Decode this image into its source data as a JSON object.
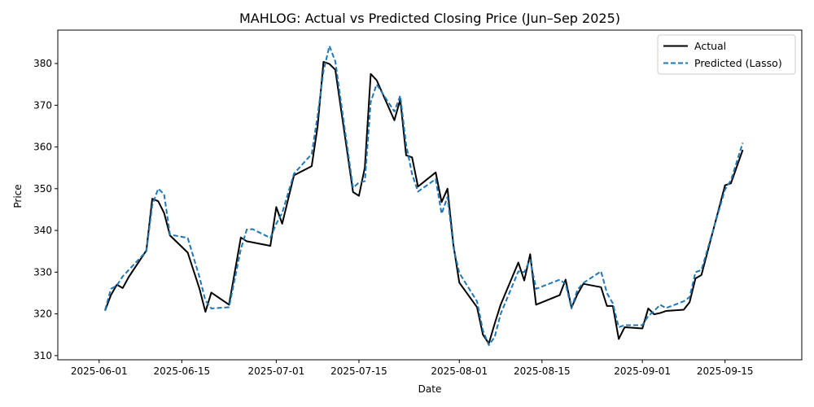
{
  "chart_data": {
    "type": "line",
    "title": "MAHLOG: Actual vs Predicted Closing Price (Jun–Sep 2025)",
    "xlabel": "Date",
    "ylabel": "Price",
    "ylim": [
      309,
      388
    ],
    "xlim": [
      "2025-05-25",
      "2025-09-28"
    ],
    "x_ticks": [
      "2025-06-01",
      "2025-06-15",
      "2025-07-01",
      "2025-07-15",
      "2025-08-01",
      "2025-08-15",
      "2025-09-01",
      "2025-09-15"
    ],
    "y_ticks": [
      310,
      320,
      330,
      340,
      350,
      360,
      370,
      380
    ],
    "grid": false,
    "legend_position": "top-right",
    "series": [
      {
        "name": "Actual",
        "color": "#000000",
        "style": "solid",
        "points": [
          [
            "2025-06-02",
            320.8
          ],
          [
            "2025-06-03",
            324.5
          ],
          [
            "2025-06-04",
            327.0
          ],
          [
            "2025-06-05",
            326.2
          ],
          [
            "2025-06-06",
            328.8
          ],
          [
            "2025-06-09",
            335.2
          ],
          [
            "2025-06-10",
            347.6
          ],
          [
            "2025-06-11",
            347.0
          ],
          [
            "2025-06-12",
            344.2
          ],
          [
            "2025-06-13",
            338.8
          ],
          [
            "2025-06-16",
            334.7
          ],
          [
            "2025-06-18",
            326.0
          ],
          [
            "2025-06-19",
            320.5
          ],
          [
            "2025-06-20",
            325.1
          ],
          [
            "2025-06-23",
            322.2
          ],
          [
            "2025-06-25",
            338.3
          ],
          [
            "2025-06-26",
            337.4
          ],
          [
            "2025-06-30",
            336.3
          ],
          [
            "2025-07-01",
            345.6
          ],
          [
            "2025-07-02",
            341.6
          ],
          [
            "2025-07-04",
            353.2
          ],
          [
            "2025-07-07",
            355.4
          ],
          [
            "2025-07-08",
            364.9
          ],
          [
            "2025-07-09",
            380.4
          ],
          [
            "2025-07-10",
            379.9
          ],
          [
            "2025-07-11",
            378.5
          ],
          [
            "2025-07-14",
            349.2
          ],
          [
            "2025-07-15",
            348.3
          ],
          [
            "2025-07-16",
            355.1
          ],
          [
            "2025-07-17",
            377.5
          ],
          [
            "2025-07-18",
            376.0
          ],
          [
            "2025-07-21",
            366.4
          ],
          [
            "2025-07-22",
            371.4
          ],
          [
            "2025-07-23",
            358.0
          ],
          [
            "2025-07-24",
            357.5
          ],
          [
            "2025-07-25",
            350.5
          ],
          [
            "2025-07-28",
            353.9
          ],
          [
            "2025-07-29",
            346.8
          ],
          [
            "2025-07-30",
            350.0
          ],
          [
            "2025-07-31",
            336.5
          ],
          [
            "2025-08-01",
            327.5
          ],
          [
            "2025-08-04",
            321.6
          ],
          [
            "2025-08-05",
            315.0
          ],
          [
            "2025-08-06",
            312.9
          ],
          [
            "2025-08-07",
            317.7
          ],
          [
            "2025-08-08",
            322.2
          ],
          [
            "2025-08-11",
            332.3
          ],
          [
            "2025-08-12",
            328.0
          ],
          [
            "2025-08-13",
            334.3
          ],
          [
            "2025-08-14",
            322.2
          ],
          [
            "2025-08-18",
            324.5
          ],
          [
            "2025-08-19",
            328.2
          ],
          [
            "2025-08-20",
            321.5
          ],
          [
            "2025-08-21",
            324.7
          ],
          [
            "2025-08-22",
            327.2
          ],
          [
            "2025-08-25",
            326.4
          ],
          [
            "2025-08-26",
            321.9
          ],
          [
            "2025-08-27",
            321.9
          ],
          [
            "2025-08-28",
            314.0
          ],
          [
            "2025-08-29",
            316.8
          ],
          [
            "2025-09-01",
            316.5
          ],
          [
            "2025-09-02",
            321.3
          ],
          [
            "2025-09-03",
            319.9
          ],
          [
            "2025-09-04",
            320.2
          ],
          [
            "2025-09-05",
            320.7
          ],
          [
            "2025-09-08",
            321.0
          ],
          [
            "2025-09-09",
            322.8
          ],
          [
            "2025-09-10",
            328.5
          ],
          [
            "2025-09-11",
            329.3
          ],
          [
            "2025-09-15",
            350.8
          ],
          [
            "2025-09-16",
            351.3
          ],
          [
            "2025-09-18",
            359.3
          ]
        ]
      },
      {
        "name": "Predicted (Lasso)",
        "color": "#1f77b4",
        "style": "dashed",
        "points": [
          [
            "2025-06-02",
            320.9
          ],
          [
            "2025-06-03",
            326.0
          ],
          [
            "2025-06-04",
            326.8
          ],
          [
            "2025-06-05",
            329.0
          ],
          [
            "2025-06-06",
            330.5
          ],
          [
            "2025-06-09",
            335.0
          ],
          [
            "2025-06-10",
            346.0
          ],
          [
            "2025-06-11",
            350.0
          ],
          [
            "2025-06-12",
            348.7
          ],
          [
            "2025-06-13",
            339.0
          ],
          [
            "2025-06-16",
            338.2
          ],
          [
            "2025-06-18",
            328.8
          ],
          [
            "2025-06-19",
            323.2
          ],
          [
            "2025-06-20",
            321.3
          ],
          [
            "2025-06-23",
            321.6
          ],
          [
            "2025-06-25",
            335.5
          ],
          [
            "2025-06-26",
            340.2
          ],
          [
            "2025-06-27",
            340.3
          ],
          [
            "2025-06-30",
            338.2
          ],
          [
            "2025-07-01",
            341.6
          ],
          [
            "2025-07-02",
            344.2
          ],
          [
            "2025-07-04",
            353.6
          ],
          [
            "2025-07-07",
            358.3
          ],
          [
            "2025-07-08",
            367.5
          ],
          [
            "2025-07-09",
            378.2
          ],
          [
            "2025-07-10",
            384.2
          ],
          [
            "2025-07-11",
            380.5
          ],
          [
            "2025-07-14",
            350.2
          ],
          [
            "2025-07-15",
            351.5
          ],
          [
            "2025-07-16",
            351.8
          ],
          [
            "2025-07-17",
            370.8
          ],
          [
            "2025-07-18",
            375.0
          ],
          [
            "2025-07-21",
            368.5
          ],
          [
            "2025-07-22",
            372.3
          ],
          [
            "2025-07-23",
            360.5
          ],
          [
            "2025-07-24",
            353.5
          ],
          [
            "2025-07-25",
            349.3
          ],
          [
            "2025-07-28",
            352.3
          ],
          [
            "2025-07-29",
            344.0
          ],
          [
            "2025-07-30",
            348.0
          ],
          [
            "2025-07-31",
            336.0
          ],
          [
            "2025-08-01",
            329.8
          ],
          [
            "2025-08-04",
            323.0
          ],
          [
            "2025-08-05",
            316.0
          ],
          [
            "2025-08-06",
            312.5
          ],
          [
            "2025-08-07",
            314.5
          ],
          [
            "2025-08-08",
            320.0
          ],
          [
            "2025-08-11",
            330.2
          ],
          [
            "2025-08-12",
            330.0
          ],
          [
            "2025-08-13",
            333.0
          ],
          [
            "2025-08-14",
            326.0
          ],
          [
            "2025-08-18",
            328.2
          ],
          [
            "2025-08-19",
            327.2
          ],
          [
            "2025-08-20",
            321.3
          ],
          [
            "2025-08-21",
            325.8
          ],
          [
            "2025-08-22",
            327.4
          ],
          [
            "2025-08-25",
            330.2
          ],
          [
            "2025-08-26",
            325.0
          ],
          [
            "2025-08-27",
            322.5
          ],
          [
            "2025-08-28",
            316.8
          ],
          [
            "2025-08-29",
            317.3
          ],
          [
            "2025-09-01",
            317.3
          ],
          [
            "2025-09-02",
            319.5
          ],
          [
            "2025-09-03",
            320.7
          ],
          [
            "2025-09-04",
            322.2
          ],
          [
            "2025-09-05",
            321.4
          ],
          [
            "2025-09-08",
            323.0
          ],
          [
            "2025-09-09",
            324.0
          ],
          [
            "2025-09-10",
            330.0
          ],
          [
            "2025-09-11",
            330.5
          ],
          [
            "2025-09-15",
            349.8
          ],
          [
            "2025-09-16",
            352.0
          ],
          [
            "2025-09-18",
            361.0
          ]
        ]
      }
    ]
  }
}
